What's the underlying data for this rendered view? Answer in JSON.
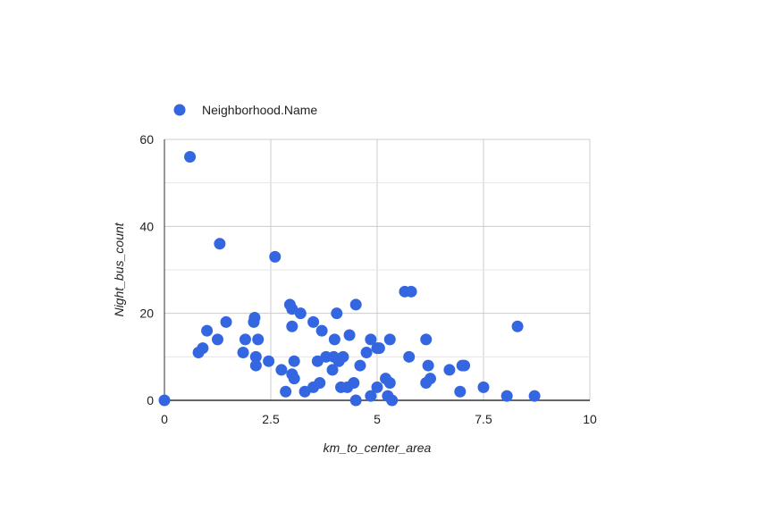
{
  "chart_data": {
    "type": "scatter",
    "title": "",
    "xlabel": "km_to_center_area",
    "ylabel": "Night_bus_count",
    "xlim": [
      0,
      10
    ],
    "ylim": [
      0,
      60
    ],
    "x_ticks": [
      0,
      2.5,
      5,
      7.5,
      10
    ],
    "x_tick_labels": [
      "0",
      "2.5",
      "5",
      "7.5",
      "10"
    ],
    "y_ticks": [
      0,
      20,
      40,
      60
    ],
    "y_tick_labels": [
      "0",
      "20",
      "40",
      "60"
    ],
    "grid": true,
    "legend": {
      "position": "top-left",
      "entries": [
        "Neighborhood.Name"
      ]
    },
    "series": [
      {
        "name": "Neighborhood.Name",
        "color": "#3366e0",
        "points": [
          [
            0.0,
            0
          ],
          [
            0.6,
            56
          ],
          [
            0.8,
            11
          ],
          [
            0.9,
            12
          ],
          [
            1.0,
            16
          ],
          [
            1.25,
            14
          ],
          [
            1.3,
            36
          ],
          [
            1.45,
            18
          ],
          [
            1.85,
            11
          ],
          [
            1.9,
            14
          ],
          [
            2.1,
            18
          ],
          [
            2.12,
            19
          ],
          [
            2.15,
            10
          ],
          [
            2.15,
            8
          ],
          [
            2.2,
            14
          ],
          [
            2.45,
            9
          ],
          [
            2.6,
            33
          ],
          [
            2.75,
            7
          ],
          [
            2.85,
            2
          ],
          [
            2.95,
            22
          ],
          [
            3.0,
            21
          ],
          [
            3.0,
            17
          ],
          [
            3.0,
            6
          ],
          [
            3.05,
            5
          ],
          [
            3.05,
            9
          ],
          [
            3.2,
            20
          ],
          [
            3.3,
            2
          ],
          [
            3.5,
            18
          ],
          [
            3.5,
            3
          ],
          [
            3.6,
            9
          ],
          [
            3.65,
            4
          ],
          [
            3.7,
            16
          ],
          [
            3.8,
            10
          ],
          [
            3.95,
            7
          ],
          [
            3.98,
            10
          ],
          [
            4.0,
            14
          ],
          [
            4.05,
            20
          ],
          [
            4.1,
            9
          ],
          [
            4.15,
            3
          ],
          [
            4.2,
            10
          ],
          [
            4.3,
            3
          ],
          [
            4.35,
            15
          ],
          [
            4.45,
            4
          ],
          [
            4.5,
            22
          ],
          [
            4.5,
            0
          ],
          [
            4.6,
            8
          ],
          [
            4.75,
            11
          ],
          [
            4.85,
            14
          ],
          [
            4.85,
            1
          ],
          [
            5.0,
            3
          ],
          [
            5.0,
            12
          ],
          [
            5.05,
            12
          ],
          [
            5.2,
            5
          ],
          [
            5.25,
            1
          ],
          [
            5.3,
            14
          ],
          [
            5.3,
            4
          ],
          [
            5.35,
            0
          ],
          [
            5.65,
            25
          ],
          [
            5.75,
            10
          ],
          [
            5.8,
            25
          ],
          [
            6.15,
            14
          ],
          [
            6.15,
            4
          ],
          [
            6.2,
            8
          ],
          [
            6.25,
            5
          ],
          [
            6.7,
            7
          ],
          [
            6.95,
            2
          ],
          [
            7.0,
            8
          ],
          [
            7.05,
            8
          ],
          [
            7.5,
            3
          ],
          [
            8.05,
            1
          ],
          [
            8.3,
            17
          ],
          [
            8.7,
            1
          ]
        ]
      }
    ]
  }
}
